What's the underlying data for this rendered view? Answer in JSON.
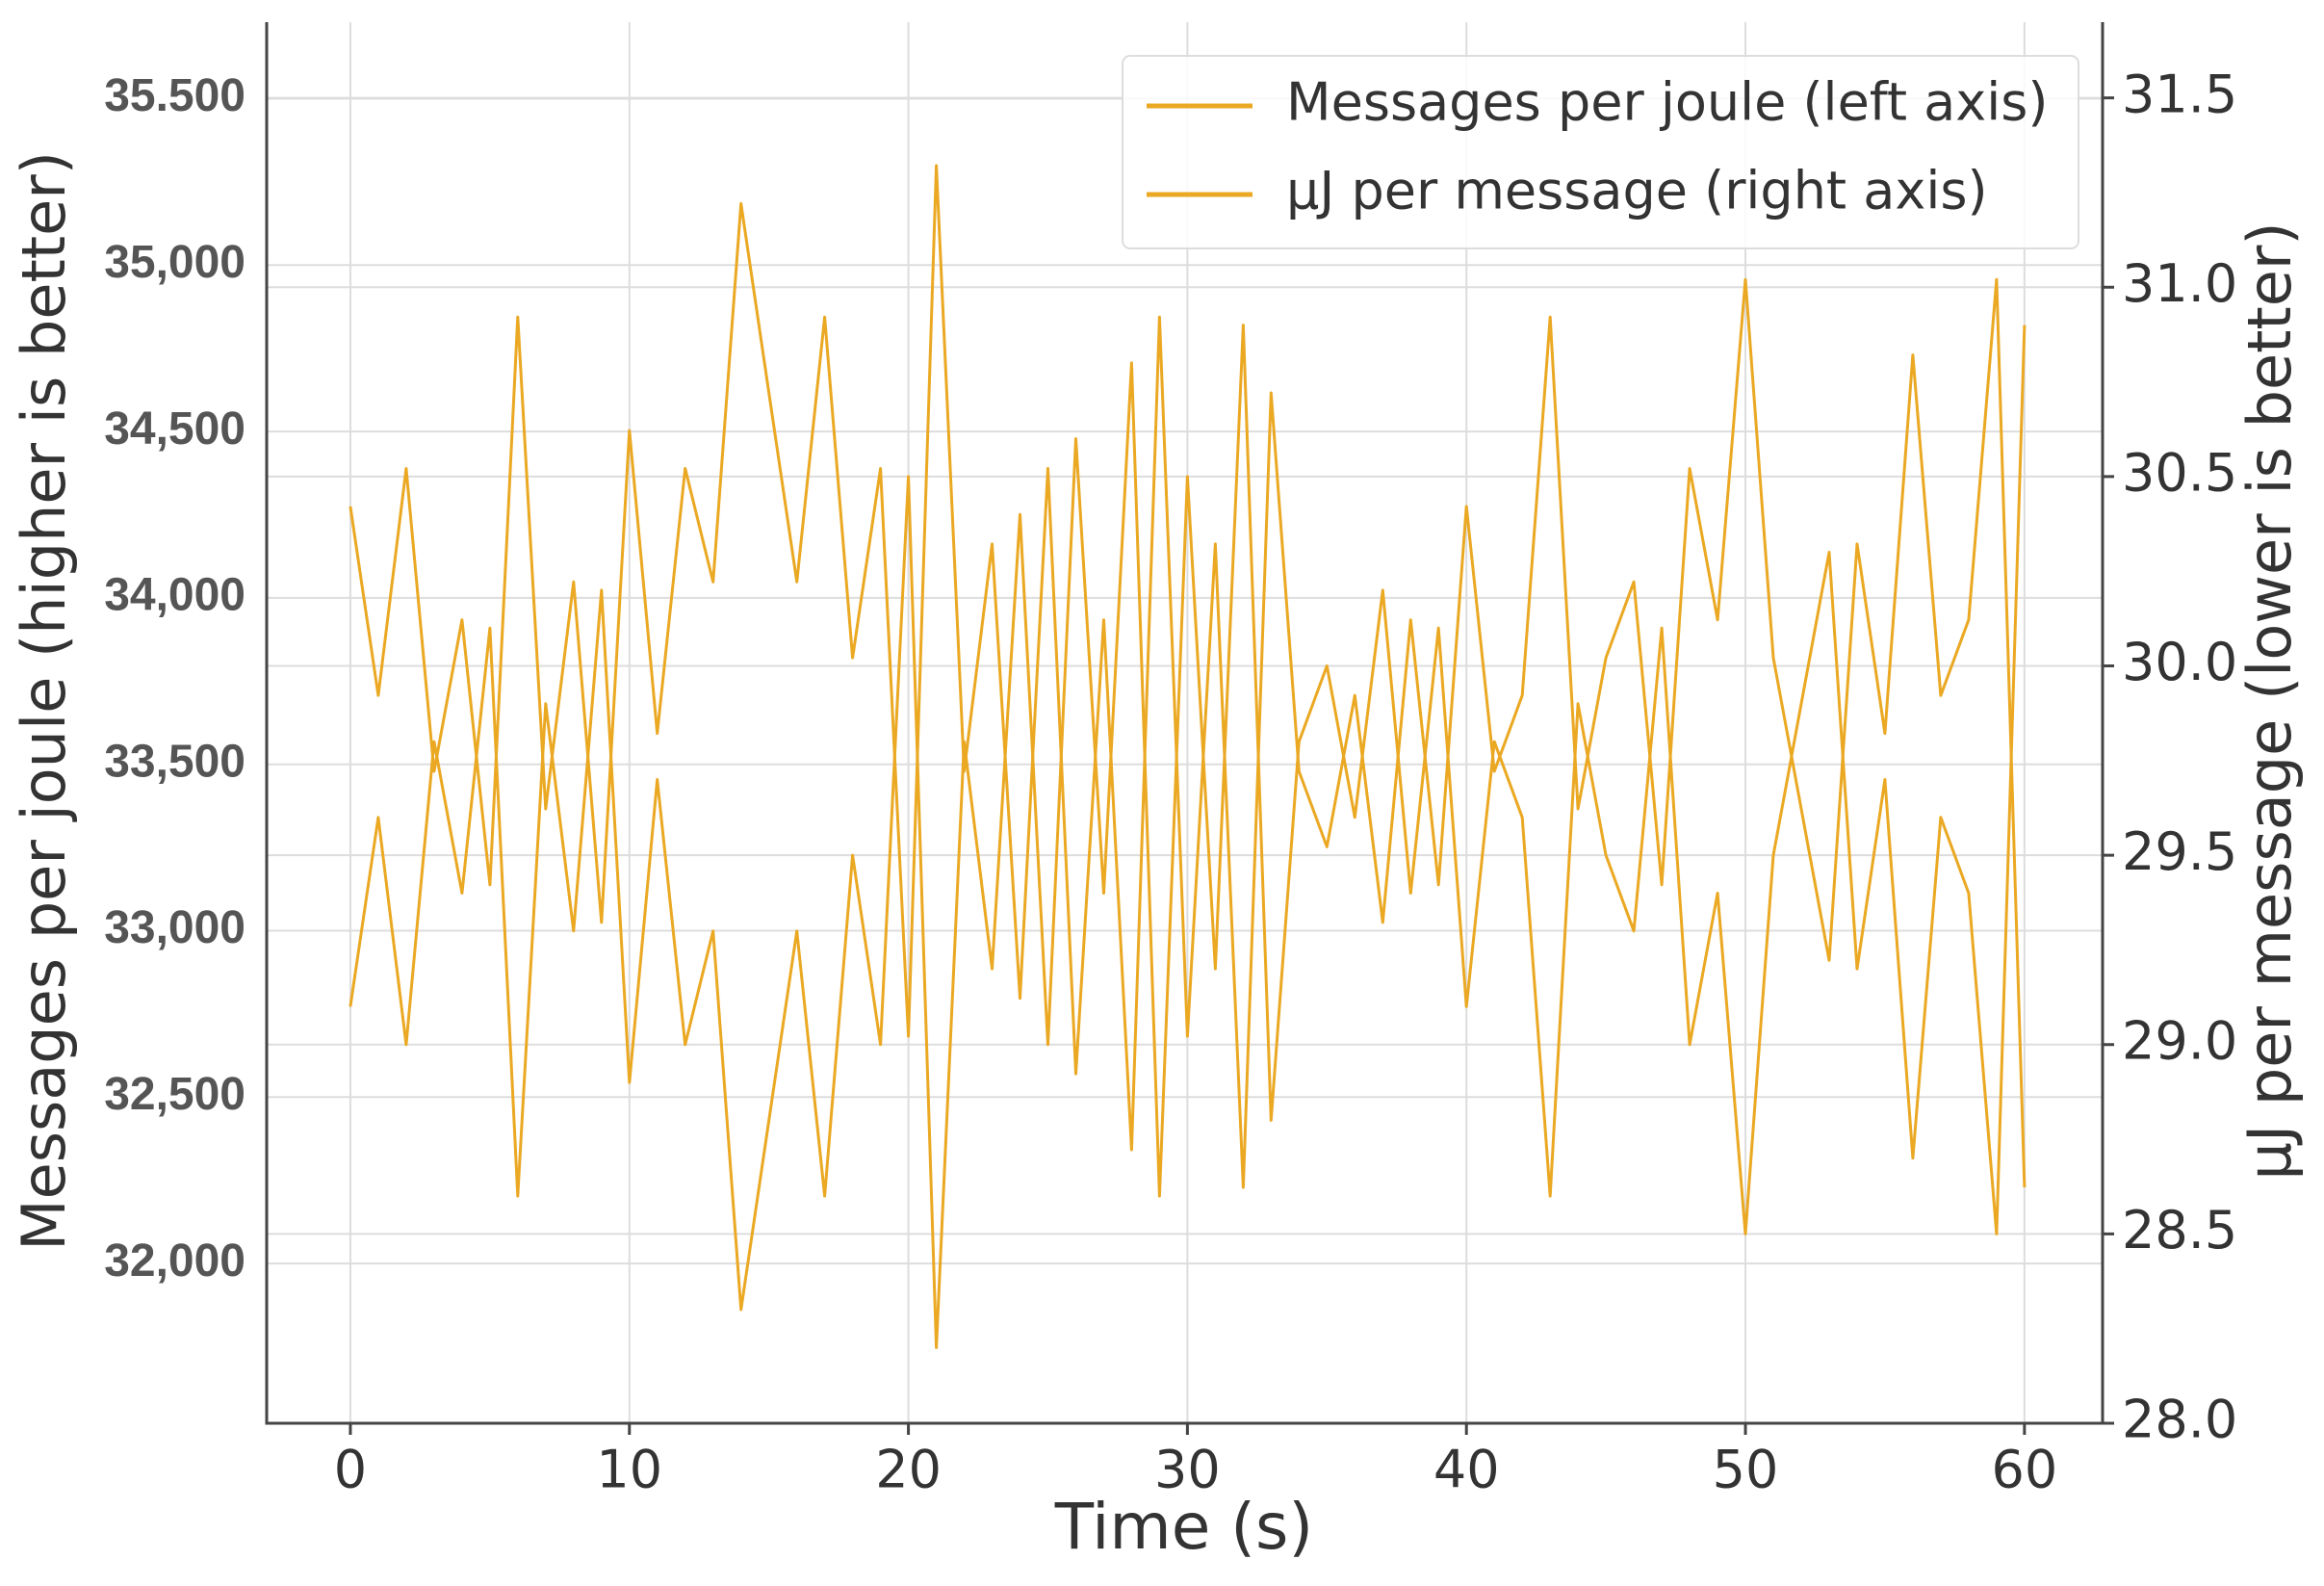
{
  "chart_data": {
    "type": "line",
    "xlabel": "Time (s)",
    "ylabel": "Messages per joule (higher is better)",
    "y2label": "µJ per message (lower is better)",
    "x": [
      0,
      1,
      2,
      3,
      4,
      5,
      6,
      7,
      8,
      9,
      10,
      11,
      12,
      13,
      14,
      15,
      16,
      17,
      18,
      19,
      20,
      21,
      22,
      23,
      24,
      25,
      26,
      27,
      28,
      29,
      30,
      31,
      32,
      33,
      34,
      35,
      36,
      37,
      38,
      39,
      40,
      41,
      42,
      43,
      44,
      45,
      46,
      47,
      48,
      49,
      50,
      51,
      52,
      53,
      54,
      55,
      56,
      57,
      58,
      59,
      60
    ],
    "series": [
      {
        "name": "Messages per joule (left axis)",
        "color": "#eaa823",
        "axis": "y",
        "values": [
          34275,
          33707,
          34389,
          33479,
          33934,
          33138,
          34844,
          33366,
          34048,
          33025,
          34503,
          33593,
          34389,
          34048,
          35185,
          34616,
          34048,
          34844,
          33820,
          34389,
          32683,
          35299,
          33479,
          34162,
          32797,
          34389,
          32570,
          33934,
          32342,
          34844,
          32683,
          34162,
          32229,
          34616,
          33479,
          33252,
          33707,
          33025,
          33934,
          33138,
          34275,
          33479,
          33707,
          34844,
          33366,
          33820,
          34048,
          33138,
          34389,
          33934,
          34957,
          33820,
          33366,
          32911,
          34162,
          33593,
          34730,
          33707,
          33934,
          34957,
          32229
        ]
      },
      {
        "name": "µJ per message (right axis)",
        "color": "#eaa823",
        "axis": "y2",
        "values": [
          29.1,
          29.6,
          29.0,
          29.8,
          29.4,
          30.1,
          28.6,
          29.9,
          29.3,
          30.2,
          28.9,
          29.7,
          29.0,
          29.3,
          28.3,
          28.8,
          29.3,
          28.6,
          29.5,
          29.0,
          30.5,
          28.2,
          29.8,
          29.2,
          30.4,
          29.0,
          30.6,
          29.4,
          30.8,
          28.6,
          30.5,
          29.2,
          30.9,
          28.8,
          29.8,
          30.0,
          29.6,
          30.2,
          29.4,
          30.1,
          29.1,
          29.8,
          29.6,
          28.6,
          29.9,
          29.5,
          29.3,
          30.1,
          29.0,
          29.4,
          28.5,
          29.5,
          29.9,
          30.3,
          29.2,
          29.7,
          28.7,
          29.6,
          29.4,
          28.5,
          30.9
        ]
      }
    ],
    "xlim": [
      -3,
      62.8
    ],
    "xticks": [
      0,
      10,
      20,
      30,
      40,
      50,
      60
    ],
    "ylim": [
      31520,
      35730
    ],
    "yticks": [
      {
        "value": 32000,
        "label": "32,000"
      },
      {
        "value": 32500,
        "label": "32,500"
      },
      {
        "value": 33000,
        "label": "33,000"
      },
      {
        "value": 33500,
        "label": "33,500"
      },
      {
        "value": 34000,
        "label": "34,000"
      },
      {
        "value": 34500,
        "label": "34,500"
      },
      {
        "value": 35000,
        "label": "35,000"
      },
      {
        "value": 35500,
        "label": "35.500"
      }
    ],
    "y2lim": [
      28.0,
      31.7
    ],
    "y2ticks": [
      {
        "value": 28,
        "label": "28.0"
      },
      28.5,
      {
        "value": 29,
        "label": "29.0"
      },
      29.5,
      {
        "value": 30,
        "label": "30.0"
      },
      30.5,
      {
        "value": 31,
        "label": "31.0"
      },
      31.5
    ],
    "grid": true,
    "legend": "upper right"
  }
}
